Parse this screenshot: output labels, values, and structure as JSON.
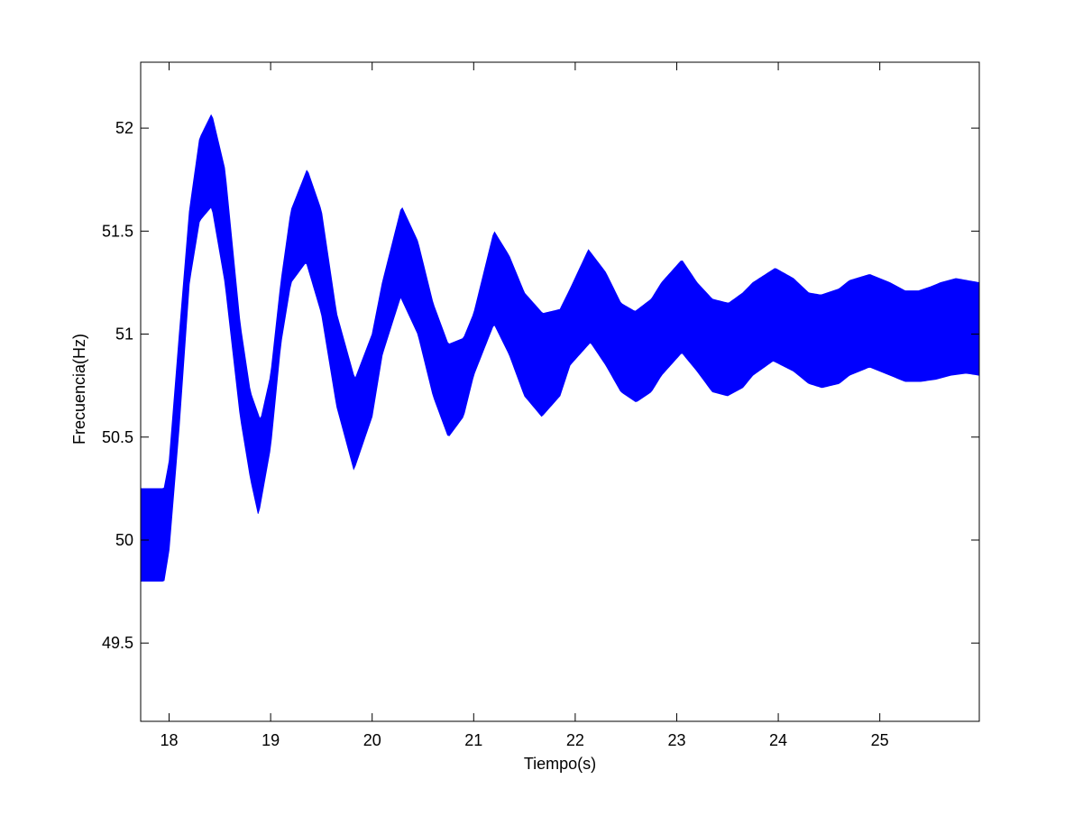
{
  "chart_data": {
    "type": "line",
    "title": "",
    "xlabel": "Tiempo(s)",
    "ylabel": "Frecuencia(Hz)",
    "xlim": [
      17.72,
      25.98
    ],
    "ylim": [
      49.12,
      52.32
    ],
    "xticks": [
      18,
      19,
      20,
      21,
      22,
      23,
      24,
      25
    ],
    "xtick_labels": [
      "18",
      "19",
      "20",
      "21",
      "22",
      "23",
      "24",
      "25"
    ],
    "yticks": [
      49.5,
      50,
      50.5,
      51,
      51.5,
      52
    ],
    "ytick_labels": [
      "49.5",
      "50",
      "50.5",
      "51",
      "51.5",
      "52"
    ],
    "grid": false,
    "legend": false,
    "series": [
      {
        "color": "#0000ff",
        "style": "fast-oscillating band (filled envelope)",
        "upper_envelope": {
          "x": [
            17.72,
            17.95,
            18.0,
            18.1,
            18.2,
            18.3,
            18.42,
            18.55,
            18.7,
            18.8,
            18.9,
            19.0,
            19.1,
            19.2,
            19.36,
            19.5,
            19.65,
            19.83,
            20.0,
            20.1,
            20.29,
            20.45,
            20.6,
            20.75,
            20.9,
            21.0,
            21.2,
            21.35,
            21.5,
            21.68,
            21.85,
            21.95,
            22.13,
            22.3,
            22.45,
            22.59,
            22.75,
            22.85,
            23.05,
            23.2,
            23.35,
            23.51,
            23.65,
            23.75,
            23.97,
            24.15,
            24.3,
            24.42,
            24.6,
            24.7,
            24.9,
            25.1,
            25.25,
            25.38,
            25.5,
            25.6,
            25.75,
            25.98
          ],
          "y": [
            50.25,
            50.25,
            50.38,
            51.0,
            51.6,
            51.95,
            52.07,
            51.8,
            51.05,
            50.72,
            50.58,
            50.8,
            51.25,
            51.6,
            51.8,
            51.6,
            51.1,
            50.78,
            51.0,
            51.25,
            51.62,
            51.45,
            51.15,
            50.95,
            50.98,
            51.1,
            51.5,
            51.38,
            51.2,
            51.1,
            51.12,
            51.22,
            51.41,
            51.3,
            51.15,
            51.11,
            51.17,
            51.25,
            51.36,
            51.25,
            51.17,
            51.15,
            51.2,
            51.25,
            51.32,
            51.27,
            51.2,
            51.19,
            51.22,
            51.26,
            51.29,
            51.25,
            51.21,
            51.21,
            51.23,
            51.25,
            51.27,
            51.25
          ]
        },
        "lower_envelope": {
          "x": [
            17.72,
            17.95,
            18.0,
            18.1,
            18.2,
            18.3,
            18.42,
            18.55,
            18.7,
            18.8,
            18.88,
            19.0,
            19.1,
            19.2,
            19.35,
            19.5,
            19.65,
            19.82,
            20.0,
            20.1,
            20.28,
            20.45,
            20.6,
            20.75,
            20.9,
            21.0,
            21.2,
            21.35,
            21.5,
            21.67,
            21.85,
            21.95,
            22.15,
            22.3,
            22.45,
            22.6,
            22.75,
            22.85,
            23.05,
            23.2,
            23.35,
            23.5,
            23.65,
            23.75,
            23.95,
            24.15,
            24.3,
            24.43,
            24.6,
            24.7,
            24.9,
            25.1,
            25.25,
            25.4,
            25.55,
            25.7,
            25.85,
            25.98
          ],
          "y": [
            49.8,
            49.8,
            49.95,
            50.55,
            51.25,
            51.55,
            51.62,
            51.25,
            50.6,
            50.3,
            50.12,
            50.45,
            50.95,
            51.25,
            51.35,
            51.1,
            50.65,
            50.34,
            50.6,
            50.9,
            51.18,
            51.0,
            50.7,
            50.5,
            50.6,
            50.8,
            51.05,
            50.9,
            50.7,
            50.6,
            50.7,
            50.85,
            50.96,
            50.85,
            50.72,
            50.67,
            50.72,
            50.8,
            50.91,
            50.82,
            50.72,
            50.7,
            50.74,
            50.8,
            50.87,
            50.82,
            50.76,
            50.74,
            50.76,
            50.8,
            50.84,
            50.8,
            50.77,
            50.77,
            50.78,
            50.8,
            50.81,
            50.8
          ]
        }
      }
    ]
  }
}
